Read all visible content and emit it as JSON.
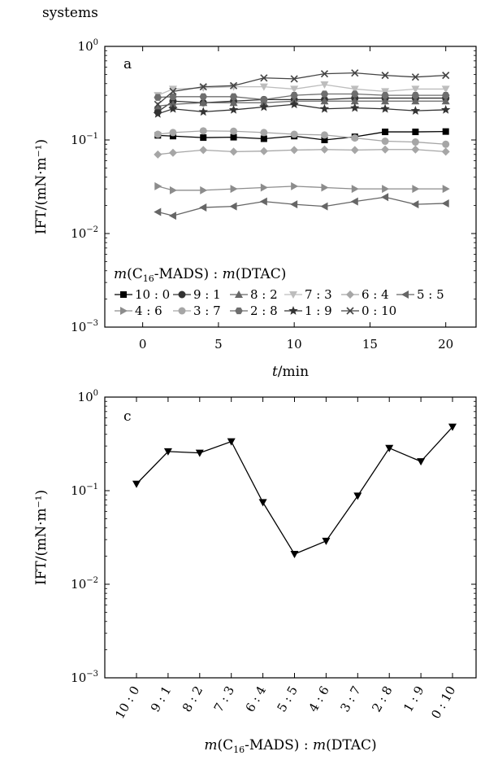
{
  "header": {
    "text": "systems"
  },
  "chart_data": [
    {
      "type": "line",
      "panel_label": "a",
      "xlabel_italic": "t",
      "xlabel_rest": "/min",
      "ylabel": "IFT/(mN·m⁻¹)",
      "yscale": "log",
      "xlim": [
        -2.5,
        22
      ],
      "ylim": [
        0.001,
        1
      ],
      "x_ticks": [
        0,
        5,
        10,
        15,
        20
      ],
      "y_ticks": [
        {
          "value": 1,
          "base": "10",
          "exp": "0"
        },
        {
          "value": 0.1,
          "base": "10",
          "exp": "−1"
        },
        {
          "value": 0.01,
          "base": "10",
          "exp": "−2"
        },
        {
          "value": 0.001,
          "base": "10",
          "exp": "−3"
        }
      ],
      "legend_title": {
        "m1": "m",
        "p1": "(C",
        "sub": "16",
        "p2": "-MADS) : ",
        "m2": "m",
        "p3": "(DTAC)"
      },
      "legend_position": "lower-left",
      "x": [
        1,
        2,
        4,
        6,
        8,
        10,
        12,
        14,
        16,
        18,
        20
      ],
      "series": [
        {
          "name": "10 : 0",
          "marker": "square",
          "color": "#000000",
          "values": [
            0.112,
            0.11,
            0.106,
            0.107,
            0.103,
            0.11,
            0.1,
            0.108,
            0.122,
            0.122,
            0.123
          ]
        },
        {
          "name": "9 : 1",
          "marker": "circle",
          "color": "#333333",
          "values": [
            0.2,
            0.26,
            0.25,
            0.26,
            0.27,
            0.27,
            0.27,
            0.28,
            0.28,
            0.28,
            0.28
          ]
        },
        {
          "name": "8 : 2",
          "marker": "triangle-up",
          "color": "#666666",
          "values": [
            0.23,
            0.24,
            0.25,
            0.25,
            0.25,
            0.26,
            0.26,
            0.26,
            0.26,
            0.26,
            0.26
          ]
        },
        {
          "name": "7 : 3",
          "marker": "triangle-down",
          "color": "#bdbdbd",
          "values": [
            0.3,
            0.35,
            0.36,
            0.37,
            0.37,
            0.35,
            0.39,
            0.35,
            0.33,
            0.35,
            0.35
          ]
        },
        {
          "name": "6 : 4",
          "marker": "diamond",
          "color": "#a6a6a6",
          "values": [
            0.07,
            0.073,
            0.078,
            0.075,
            0.076,
            0.078,
            0.079,
            0.078,
            0.079,
            0.079,
            0.075
          ]
        },
        {
          "name": "5 : 5",
          "marker": "triangle-left",
          "color": "#666666",
          "values": [
            0.017,
            0.0155,
            0.019,
            0.0195,
            0.022,
            0.0205,
            0.0195,
            0.022,
            0.0245,
            0.0205,
            0.021
          ]
        },
        {
          "name": "4 : 6",
          "marker": "triangle-right",
          "color": "#8c8c8c",
          "values": [
            0.032,
            0.029,
            0.029,
            0.03,
            0.031,
            0.032,
            0.031,
            0.03,
            0.03,
            0.03,
            0.03
          ]
        },
        {
          "name": "3 : 7",
          "marker": "circle",
          "color": "#a6a6a6",
          "values": [
            0.115,
            0.12,
            0.125,
            0.124,
            0.12,
            0.115,
            0.113,
            0.105,
            0.097,
            0.095,
            0.09
          ]
        },
        {
          "name": "2 : 8",
          "marker": "hexagon",
          "color": "#6e6e6e",
          "values": [
            0.285,
            0.29,
            0.29,
            0.29,
            0.27,
            0.3,
            0.31,
            0.31,
            0.3,
            0.3,
            0.3
          ]
        },
        {
          "name": "1 : 9",
          "marker": "star",
          "color": "#333333",
          "values": [
            0.19,
            0.215,
            0.2,
            0.21,
            0.225,
            0.24,
            0.215,
            0.22,
            0.215,
            0.205,
            0.21
          ]
        },
        {
          "name": "0 : 10",
          "marker": "x",
          "color": "#444444",
          "values": [
            0.24,
            0.33,
            0.37,
            0.38,
            0.46,
            0.45,
            0.51,
            0.52,
            0.49,
            0.47,
            0.49
          ]
        }
      ]
    },
    {
      "type": "line",
      "panel_label": "c",
      "ylabel": "IFT/(mN·m⁻¹)",
      "xlabel": {
        "m1": "m",
        "p1": "(C",
        "sub": "16",
        "p2": "-MADS) : ",
        "m2": "m",
        "p3": "(DTAC)"
      },
      "yscale": "log",
      "ylim": [
        0.001,
        1
      ],
      "y_ticks": [
        {
          "value": 1,
          "base": "10",
          "exp": "0"
        },
        {
          "value": 0.1,
          "base": "10",
          "exp": "−1"
        },
        {
          "value": 0.01,
          "base": "10",
          "exp": "−2"
        },
        {
          "value": 0.001,
          "base": "10",
          "exp": "−3"
        }
      ],
      "categories": [
        "10 : 0",
        "9 : 1",
        "8 : 2",
        "7 : 3",
        "6 : 4",
        "5 : 5",
        "4 : 6",
        "3 : 7",
        "2 : 8",
        "1 : 9",
        "0 : 10"
      ],
      "series": [
        {
          "marker": "triangle-down",
          "color": "#000000",
          "values": [
            0.118,
            0.262,
            0.253,
            0.335,
            0.075,
            0.021,
            0.029,
            0.088,
            0.285,
            0.205,
            0.48
          ]
        }
      ]
    }
  ]
}
